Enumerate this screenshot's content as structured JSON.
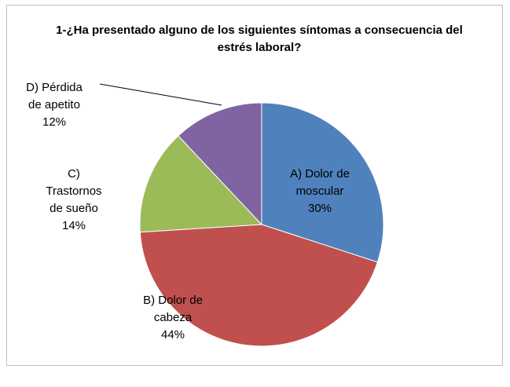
{
  "chart_data": {
    "type": "pie",
    "title": "1-¿Ha presentado alguno de los siguientes síntomas a consecuencia del estrés laboral?",
    "categories": [
      "A) Dolor de moscular",
      "B) Dolor de cabeza",
      "C) Trastornos de sueño",
      "D) Pérdida de apetito"
    ],
    "values": [
      30,
      44,
      14,
      12
    ],
    "value_labels": [
      "30%",
      "44%",
      "14%",
      "12%"
    ],
    "colors": [
      "#4f81bd",
      "#c0504d",
      "#9bbb59",
      "#8064a2"
    ]
  }
}
